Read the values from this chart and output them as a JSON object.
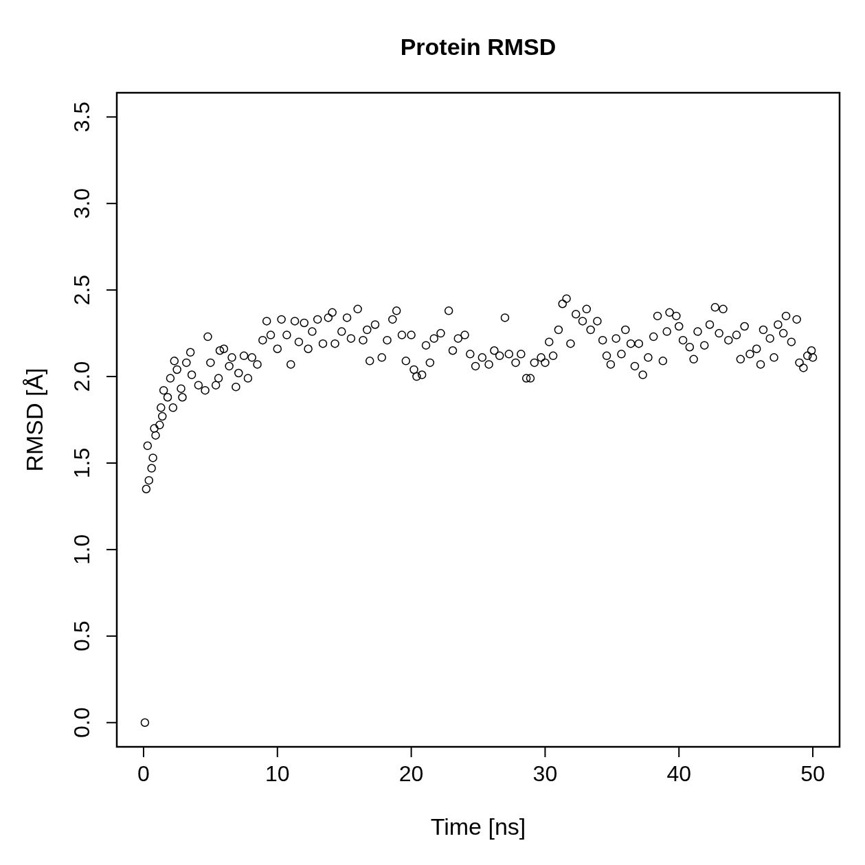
{
  "chart_data": {
    "type": "scatter",
    "title": "Protein RMSD",
    "xlabel": "Time [ns]",
    "ylabel": "RMSD [Å]",
    "xlim": [
      -2,
      52
    ],
    "ylim": [
      -0.14,
      3.64
    ],
    "xticks": [
      0,
      10,
      20,
      30,
      40,
      50
    ],
    "yticks": [
      {
        "value": 0,
        "label": "0.0"
      },
      0.5,
      {
        "value": 1,
        "label": "1.0"
      },
      1.5,
      {
        "value": 2,
        "label": "2.0"
      },
      2.5,
      {
        "value": 3,
        "label": "3.0"
      },
      3.5
    ],
    "grid": false,
    "marker": "circle",
    "series": [
      {
        "color": "#000000",
        "x": [
          0.1,
          0.2,
          0.3,
          0.4,
          0.6,
          0.7,
          0.8,
          0.9,
          1.2,
          1.3,
          1.4,
          1.5,
          1.8,
          2.0,
          2.2,
          2.3,
          2.5,
          2.8,
          2.9,
          3.2,
          3.5,
          3.6,
          4.1,
          4.6,
          4.8,
          5.0,
          5.4,
          5.6,
          5.7,
          6.0,
          6.4,
          6.6,
          6.9,
          7.1,
          7.5,
          7.8,
          8.1,
          8.5,
          8.9,
          9.2,
          9.5,
          10.0,
          10.3,
          10.7,
          11.0,
          11.3,
          11.6,
          12.0,
          12.3,
          12.6,
          13.0,
          13.4,
          13.8,
          14.1,
          14.3,
          14.8,
          15.2,
          15.5,
          16.0,
          16.4,
          16.7,
          16.9,
          17.3,
          17.8,
          18.2,
          18.6,
          18.9,
          19.3,
          19.6,
          20.0,
          20.2,
          20.4,
          20.8,
          21.1,
          21.4,
          21.7,
          22.2,
          22.8,
          23.1,
          23.5,
          24.0,
          24.4,
          24.8,
          25.3,
          25.8,
          26.2,
          26.6,
          27.0,
          27.3,
          27.8,
          28.2,
          28.6,
          28.9,
          29.2,
          29.7,
          30.0,
          30.3,
          30.6,
          31.0,
          31.3,
          31.6,
          31.9,
          32.3,
          32.8,
          33.1,
          33.4,
          33.9,
          34.3,
          34.6,
          34.9,
          35.3,
          35.7,
          36.0,
          36.4,
          36.7,
          37.0,
          37.3,
          37.7,
          38.1,
          38.4,
          38.8,
          39.1,
          39.3,
          39.8,
          40.0,
          40.3,
          40.8,
          41.1,
          41.4,
          41.9,
          42.3,
          42.7,
          43.0,
          43.3,
          43.7,
          44.3,
          44.6,
          44.9,
          45.3,
          45.8,
          46.1,
          46.3,
          46.8,
          47.1,
          47.4,
          47.8,
          48.0,
          48.4,
          48.8,
          49.0,
          49.3,
          49.6,
          49.9,
          50.0
        ],
        "values": [
          0,
          1.35,
          1.6,
          1.4,
          1.47,
          1.53,
          1.7,
          1.66,
          1.72,
          1.82,
          1.77,
          1.92,
          1.88,
          1.99,
          1.82,
          2.09,
          2.04,
          1.93,
          1.88,
          2.08,
          2.14,
          2.01,
          1.95,
          1.92,
          2.23,
          2.08,
          1.95,
          1.99,
          2.15,
          2.16,
          2.06,
          2.11,
          1.94,
          2.02,
          2.12,
          1.99,
          2.11,
          2.07,
          2.21,
          2.32,
          2.24,
          2.16,
          2.33,
          2.24,
          2.07,
          2.32,
          2.2,
          2.31,
          2.16,
          2.26,
          2.33,
          2.19,
          2.34,
          2.37,
          2.19,
          2.26,
          2.34,
          2.22,
          2.39,
          2.21,
          2.27,
          2.09,
          2.3,
          2.11,
          2.21,
          2.33,
          2.38,
          2.24,
          2.09,
          2.24,
          2.04,
          2.0,
          2.01,
          2.18,
          2.08,
          2.22,
          2.25,
          2.38,
          2.15,
          2.22,
          2.24,
          2.13,
          2.06,
          2.11,
          2.07,
          2.15,
          2.12,
          2.34,
          2.13,
          2.08,
          2.13,
          1.99,
          1.99,
          2.08,
          2.11,
          2.08,
          2.2,
          2.12,
          2.27,
          2.42,
          2.45,
          2.19,
          2.36,
          2.32,
          2.39,
          2.27,
          2.32,
          2.21,
          2.12,
          2.07,
          2.22,
          2.13,
          2.27,
          2.19,
          2.06,
          2.19,
          2.01,
          2.11,
          2.23,
          2.35,
          2.09,
          2.26,
          2.37,
          2.35,
          2.29,
          2.21,
          2.17,
          2.1,
          2.26,
          2.18,
          2.3,
          2.4,
          2.25,
          2.39,
          2.21,
          2.24,
          2.1,
          2.29,
          2.13,
          2.16,
          2.07,
          2.27,
          2.22,
          2.11,
          2.3,
          2.25,
          2.35,
          2.2,
          2.33,
          2.08,
          2.05,
          2.12,
          2.15,
          2.11
        ]
      }
    ]
  }
}
